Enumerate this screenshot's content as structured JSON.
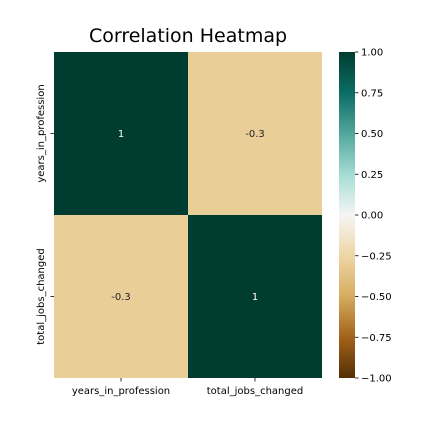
{
  "chart_data": {
    "type": "heatmap",
    "title": "Correlation Heatmap",
    "xlabel": "",
    "ylabel": "",
    "x_categories": [
      "years_in_profession",
      "total_jobs_changed"
    ],
    "y_categories": [
      "years_in_profession",
      "total_jobs_changed"
    ],
    "matrix": [
      [
        1,
        -0.3
      ],
      [
        -0.3,
        1
      ]
    ],
    "cell_labels": [
      [
        "1",
        "-0.3"
      ],
      [
        "-0.3",
        "1"
      ]
    ],
    "colormap": "BrBG",
    "vmin": -1.0,
    "vmax": 1.0,
    "colorbar_ticks": [
      1.0,
      0.75,
      0.5,
      0.25,
      0.0,
      -0.25,
      -0.5,
      -0.75,
      -1.0
    ],
    "colorbar_tick_labels": [
      "1.00",
      "0.75",
      "0.50",
      "0.25",
      "0.00",
      "−0.25",
      "−0.50",
      "−0.75",
      "−1.00"
    ],
    "colorbar_placement": "right",
    "colors": {
      "high": "#003c30",
      "low_mid": "#e8d29f"
    }
  }
}
